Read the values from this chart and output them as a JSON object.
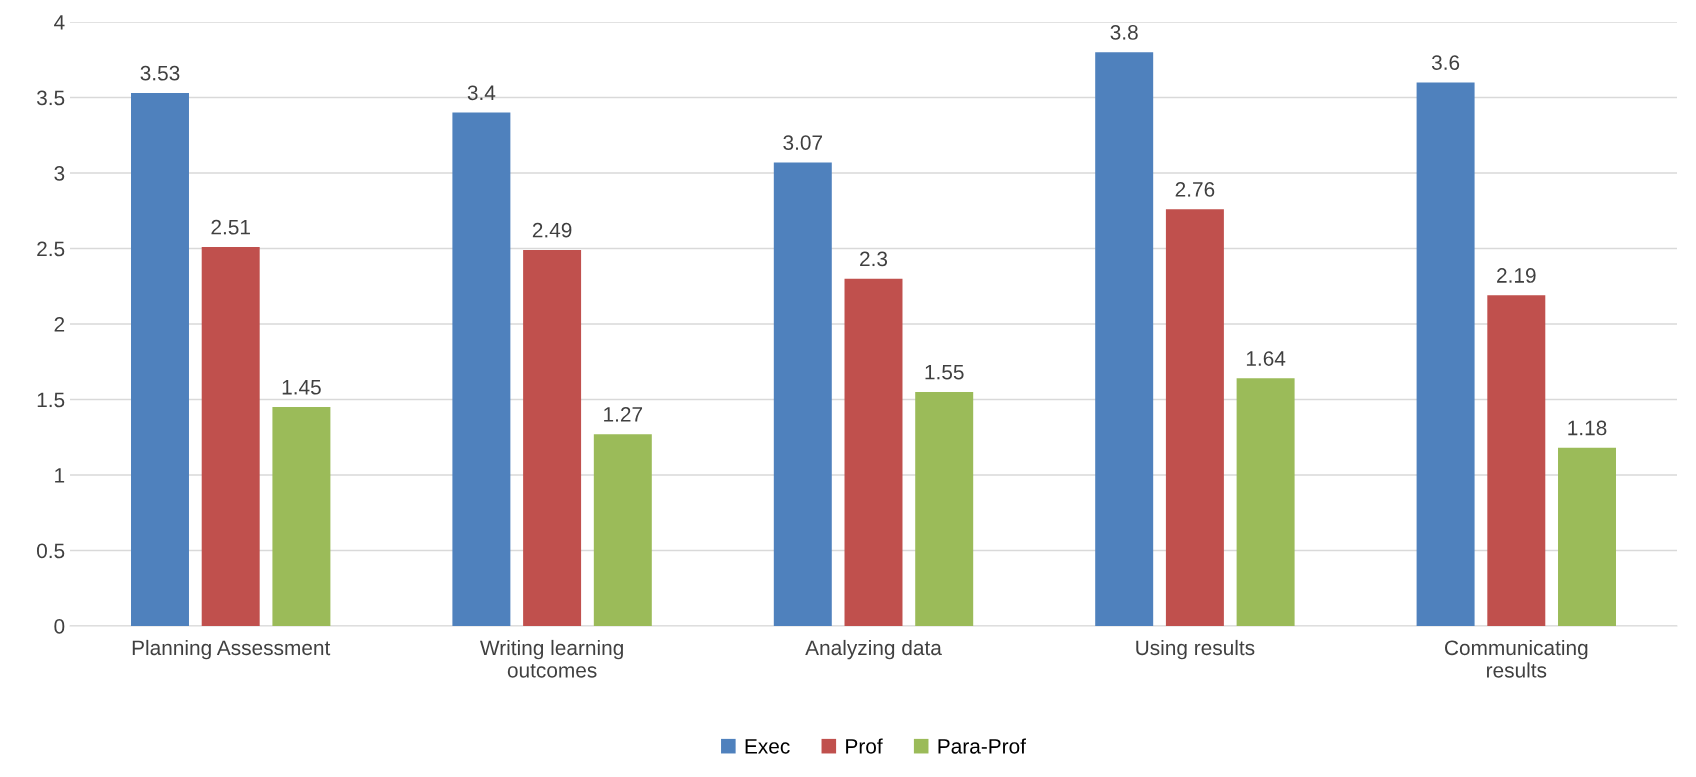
{
  "chart_data": {
    "type": "bar",
    "categories": [
      "Planning Assessment",
      "Writing learning outcomes",
      "Analyzing data",
      "Using results",
      "Communicating results"
    ],
    "series": [
      {
        "name": "Exec",
        "color": "#4f81bd",
        "values": [
          3.53,
          3.4,
          3.07,
          3.8,
          3.6
        ]
      },
      {
        "name": "Prof",
        "color": "#c0504d",
        "values": [
          2.51,
          2.49,
          2.3,
          2.76,
          2.19
        ]
      },
      {
        "name": "Para-Prof",
        "color": "#9bbb59",
        "values": [
          1.45,
          1.27,
          1.55,
          1.64,
          1.18
        ]
      }
    ],
    "ylim": [
      0,
      4
    ],
    "yticks": [
      0,
      0.5,
      1,
      1.5,
      2,
      2.5,
      3,
      3.5,
      4
    ],
    "grid": "y",
    "legend": "bottom",
    "data_labels": true
  }
}
